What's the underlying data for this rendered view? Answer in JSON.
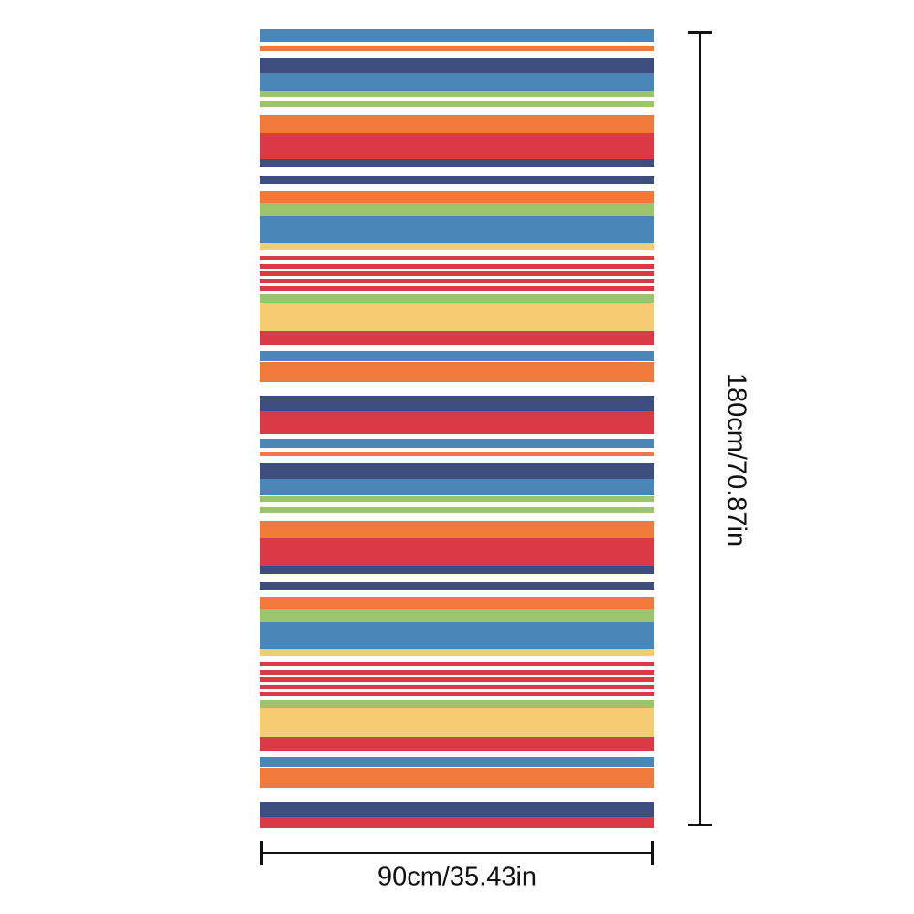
{
  "product": {
    "dimensions": {
      "height_label": "180cm/70.87in",
      "width_label": "90cm/35.43in"
    },
    "palette": {
      "blue": "#4a86b8",
      "orange": "#ef7a3b",
      "navy": "#3c4d7e",
      "green": "#9cc46a",
      "red": "#d93a45",
      "yellow": "#f6cc72",
      "white": "#ffffff"
    },
    "stripe_sequence": [
      "blue",
      "orange",
      "navy",
      "blue",
      "green",
      "green",
      "orange",
      "red",
      "navy",
      "navy",
      "orange",
      "green",
      "blue",
      "yellow",
      "red",
      "red",
      "red",
      "red",
      "red",
      "green",
      "yellow",
      "red",
      "blue",
      "orange",
      "navy",
      "red",
      "blue",
      "orange",
      "navy",
      "blue",
      "green",
      "green",
      "orange",
      "red",
      "navy",
      "navy",
      "orange",
      "green",
      "blue",
      "yellow",
      "red",
      "red",
      "red",
      "red",
      "red",
      "green",
      "yellow",
      "red",
      "blue",
      "orange",
      "navy",
      "red"
    ]
  }
}
